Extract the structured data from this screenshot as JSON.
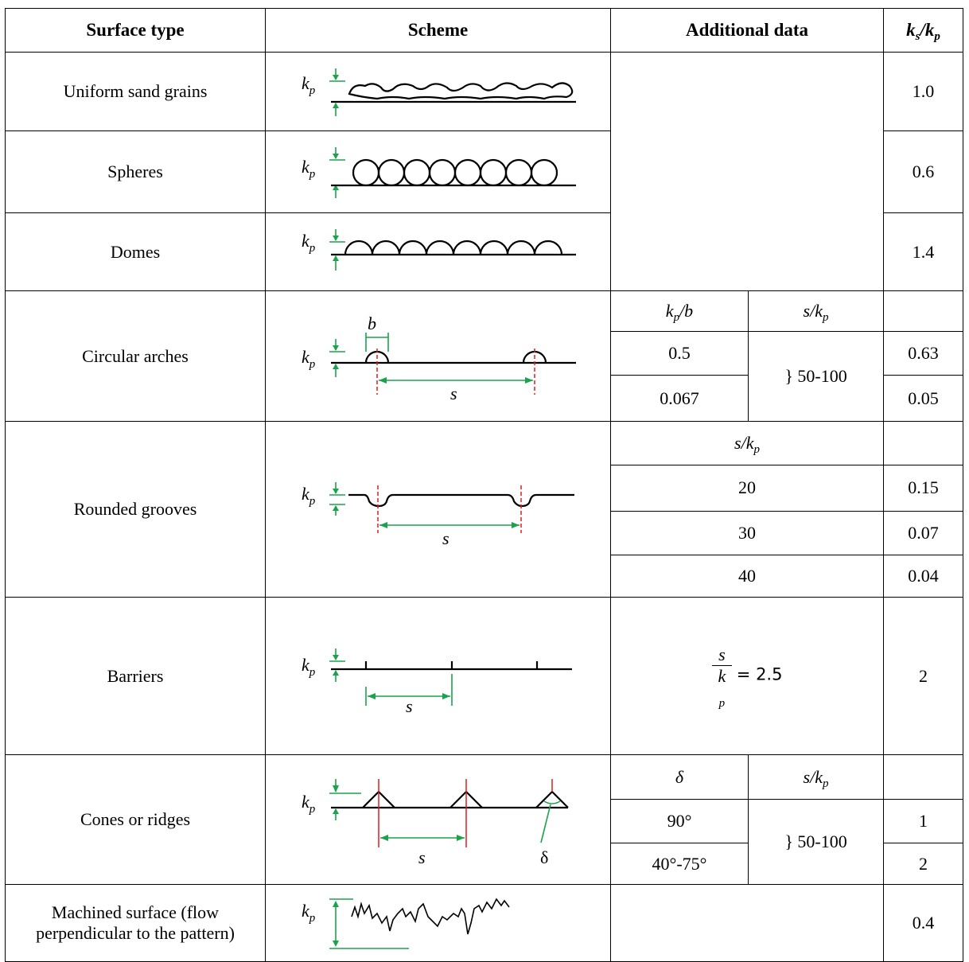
{
  "table": {
    "header": [
      "Surface type",
      "Scheme",
      "Additional data",
      "k_s/k_p"
    ],
    "rows": [
      {
        "surface": "Uniform sand grains",
        "scheme": [
          "k_p"
        ],
        "ratio": "1.0"
      },
      {
        "surface": "Spheres",
        "scheme": [
          "k_p"
        ],
        "ratio": "0.6"
      },
      {
        "surface": "Domes",
        "scheme": [
          "k_p"
        ],
        "ratio": "1.4"
      },
      {
        "surface": "Circular arches",
        "scheme": [
          "k_p",
          "b",
          "s"
        ],
        "params": {
          "head": [
            "k_p/b",
            "s/k_p"
          ],
          "col1": [
            "0.5",
            "0.067"
          ],
          "col2": "} 50-100"
        },
        "ratio": [
          "0.63",
          "0.05"
        ]
      },
      {
        "surface": "Rounded grooves",
        "scheme": [
          "k_p",
          "s"
        ],
        "params": {
          "head": "s/k_p",
          "col1": [
            "20",
            "30",
            "40"
          ]
        },
        "ratio": [
          "0.15",
          "0.07",
          "0.04"
        ]
      },
      {
        "surface": "Barriers",
        "scheme": [
          "k_p",
          "s"
        ],
        "params": {
          "numerator": "s",
          "denominator": "k_p",
          "rhs": "= 2.5"
        },
        "ratio": "2"
      },
      {
        "surface": "Cones or ridges",
        "scheme": [
          "k_p",
          "s",
          "δ"
        ],
        "params": {
          "head": [
            "δ",
            "s/k_p"
          ],
          "col1": [
            "90°",
            "40°-75°"
          ],
          "col2": "} 50-100"
        },
        "ratio": [
          "1",
          "2"
        ]
      },
      {
        "surface": "Machined surface (flow perpendicular to the pattern)",
        "scheme": [
          "k_p"
        ],
        "ratio": "0.4"
      }
    ]
  }
}
